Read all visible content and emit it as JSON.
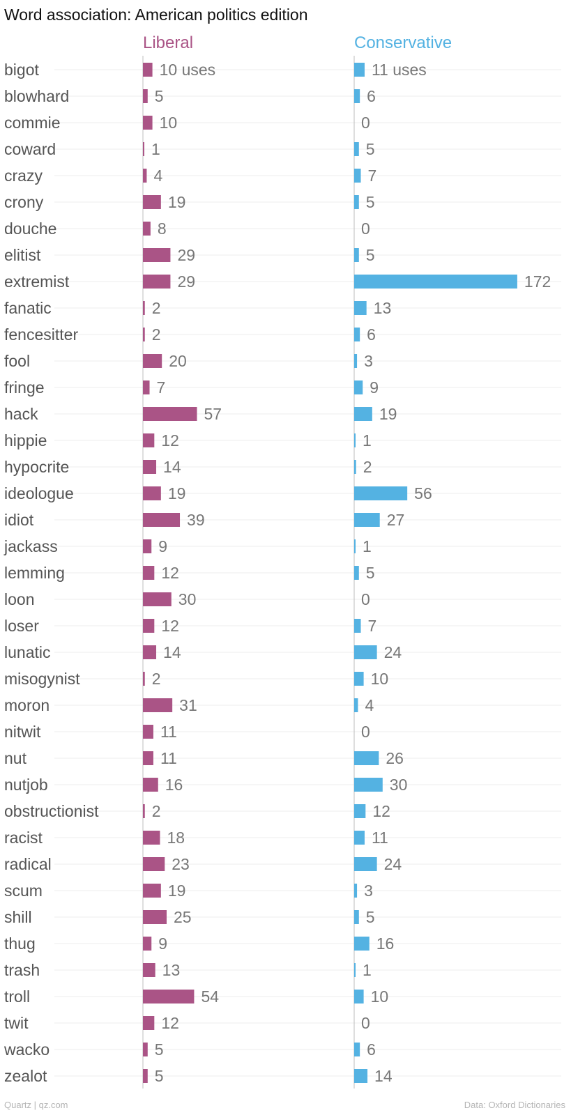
{
  "chart_data": {
    "type": "bar",
    "title": "Word association: American politics edition",
    "categories": [
      "bigot",
      "blowhard",
      "commie",
      "coward",
      "crazy",
      "crony",
      "douche",
      "elitist",
      "extremist",
      "fanatic",
      "fencesitter",
      "fool",
      "fringe",
      "hack",
      "hippie",
      "hypocrite",
      "ideologue",
      "idiot",
      "jackass",
      "lemming",
      "loon",
      "loser",
      "lunatic",
      "misogynist",
      "moron",
      "nitwit",
      "nut",
      "nutjob",
      "obstructionist",
      "racist",
      "radical",
      "scum",
      "shill",
      "thug",
      "trash",
      "troll",
      "twit",
      "wacko",
      "zealot"
    ],
    "series": [
      {
        "name": "Liberal",
        "color": "#aa5486",
        "values": [
          10,
          5,
          10,
          1,
          4,
          19,
          8,
          29,
          29,
          2,
          2,
          20,
          7,
          57,
          12,
          14,
          19,
          39,
          9,
          12,
          30,
          12,
          14,
          2,
          31,
          11,
          11,
          16,
          2,
          18,
          23,
          19,
          25,
          9,
          13,
          54,
          12,
          5,
          5
        ]
      },
      {
        "name": "Conservative",
        "color": "#54b2e2",
        "values": [
          11,
          6,
          0,
          5,
          7,
          5,
          0,
          5,
          172,
          13,
          6,
          3,
          9,
          19,
          1,
          2,
          56,
          27,
          1,
          5,
          0,
          7,
          24,
          10,
          4,
          0,
          26,
          30,
          12,
          11,
          24,
          3,
          5,
          16,
          1,
          10,
          0,
          6,
          14
        ]
      }
    ],
    "first_label_suffix": " uses",
    "legend": "top",
    "grid": true
  },
  "footer": {
    "source_left": "Quartz | qz.com",
    "source_right": "Data: Oxford Dictionaries"
  }
}
